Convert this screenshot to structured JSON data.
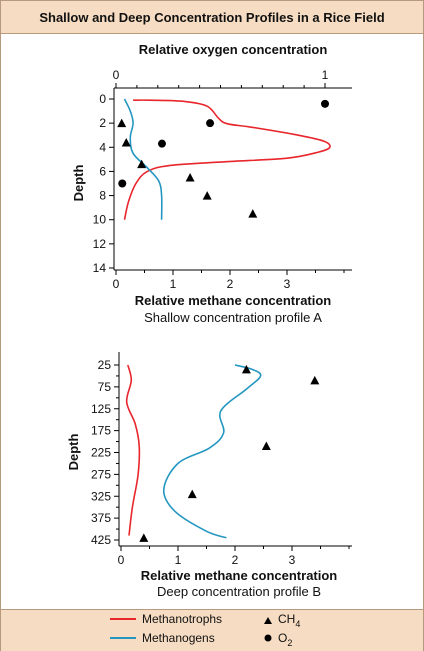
{
  "figure_title": "Shallow and Deep Concentration Profiles in a Rice Field",
  "legend": {
    "methanotrophs": "Methanotrophs",
    "methanogens": "Methanogens",
    "ch4": "CH",
    "ch4_sub": "4",
    "o2": "O",
    "o2_sub": "2"
  },
  "colors": {
    "methanotrophs": "#e8262c",
    "methanogens": "#2497c1",
    "marker": "#000000"
  },
  "chart_data": [
    {
      "type": "line",
      "caption": "Shallow concentration profile A",
      "xlabel": "Relative methane concentration",
      "ylabel": "Depth",
      "x2label": "Relative oxygen concentration",
      "xlim": [
        0,
        4
      ],
      "x2lim": [
        0,
        1
      ],
      "ylim": [
        0,
        14
      ],
      "xticks": [
        0,
        1,
        2,
        3
      ],
      "x2ticks": [
        0,
        1
      ],
      "yticks": [
        0,
        2,
        4,
        6,
        8,
        10,
        12,
        14
      ],
      "series": [
        {
          "name": "Methanotrophs",
          "points": [
            [
              0.15,
              10
            ],
            [
              0.22,
              8.5
            ],
            [
              0.35,
              7
            ],
            [
              0.55,
              6
            ],
            [
              0.95,
              5.5
            ],
            [
              1.9,
              5.2
            ],
            [
              3.0,
              4.9
            ],
            [
              3.55,
              4.4
            ],
            [
              3.75,
              4
            ],
            [
              3.65,
              3.5
            ],
            [
              3.2,
              3.0
            ],
            [
              2.4,
              2.35
            ],
            [
              1.95,
              2.05
            ],
            [
              1.8,
              1.6
            ],
            [
              1.6,
              0.6
            ],
            [
              1.2,
              0.2
            ],
            [
              0.6,
              0.1
            ],
            [
              0.3,
              0.1
            ]
          ]
        },
        {
          "name": "Methanogens",
          "points": [
            [
              0.15,
              0
            ],
            [
              0.25,
              1
            ],
            [
              0.3,
              2
            ],
            [
              0.25,
              3.2
            ],
            [
              0.3,
              4.5
            ],
            [
              0.55,
              5.7
            ],
            [
              0.75,
              6.8
            ],
            [
              0.8,
              8
            ],
            [
              0.8,
              10
            ]
          ]
        }
      ],
      "ch4_points": [
        [
          0.1,
          2
        ],
        [
          0.18,
          3.6
        ],
        [
          0.45,
          5.4
        ],
        [
          1.3,
          6.5
        ],
        [
          1.6,
          8
        ],
        [
          2.4,
          9.5
        ]
      ],
      "o2_points": [
        [
          1.0,
          0.4
        ],
        [
          0.45,
          2
        ],
        [
          0.22,
          3.7
        ],
        [
          0.03,
          7
        ]
      ]
    },
    {
      "type": "line",
      "caption": "Deep concentration profile B",
      "xlabel": "Relative methane concentration",
      "ylabel": "Depth",
      "xlim": [
        0,
        4
      ],
      "ylim": [
        25,
        425
      ],
      "xticks": [
        0,
        1,
        2,
        3
      ],
      "yticks": [
        25,
        75,
        125,
        175,
        225,
        275,
        325,
        375,
        425
      ],
      "series": [
        {
          "name": "Methanotrophs",
          "points": [
            [
              0.12,
              25
            ],
            [
              0.18,
              60
            ],
            [
              0.1,
              110
            ],
            [
              0.25,
              160
            ],
            [
              0.32,
              210
            ],
            [
              0.3,
              275
            ],
            [
              0.2,
              350
            ],
            [
              0.14,
              415
            ]
          ]
        },
        {
          "name": "Methanogens",
          "points": [
            [
              2.0,
              25
            ],
            [
              2.3,
              35
            ],
            [
              2.45,
              50
            ],
            [
              2.2,
              80
            ],
            [
              1.75,
              130
            ],
            [
              1.8,
              180
            ],
            [
              1.55,
              215
            ],
            [
              1.0,
              250
            ],
            [
              0.75,
              310
            ],
            [
              0.95,
              360
            ],
            [
              1.5,
              405
            ],
            [
              1.85,
              420
            ]
          ]
        }
      ],
      "ch4_points": [
        [
          2.2,
          35
        ],
        [
          3.4,
          60
        ],
        [
          2.55,
          210
        ],
        [
          1.25,
          320
        ],
        [
          0.4,
          420
        ]
      ]
    }
  ]
}
